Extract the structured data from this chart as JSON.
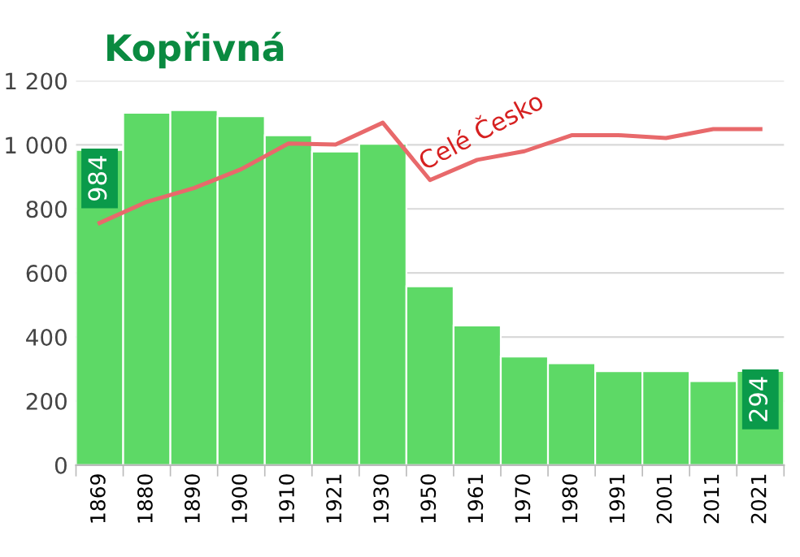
{
  "chart_data": {
    "type": "bar",
    "title": "Kopřivná",
    "categories": [
      "1869",
      "1880",
      "1890",
      "1900",
      "1910",
      "1921",
      "1930",
      "1950",
      "1961",
      "1970",
      "1980",
      "1991",
      "2001",
      "2011",
      "2021"
    ],
    "series": [
      {
        "color": "#5dd966",
        "values": [
          984,
          1100,
          1108,
          1089,
          1030,
          979,
          1003,
          558,
          436,
          339,
          318,
          293,
          293,
          262,
          294
        ],
        "value_labels": [
          "984",
          null,
          null,
          null,
          null,
          null,
          null,
          null,
          null,
          null,
          null,
          null,
          null,
          null,
          "294"
        ]
      },
      {
        "type": "line",
        "name": "Celé Česko",
        "color": "#e8696b",
        "values": [
          756,
          822,
          865,
          924,
          1004,
          1001,
          1069,
          890,
          953,
          980,
          1030,
          1030,
          1021,
          1049,
          1049
        ]
      }
    ],
    "ylim": [
      0,
      1200
    ],
    "yticks": [
      0,
      {
        "value": 200,
        "label": "200"
      },
      400,
      600,
      800,
      {
        "value": 1000,
        "label": "1 000"
      },
      {
        "value": 1200,
        "label": "1 200"
      }
    ],
    "grid": "y",
    "legend": false
  }
}
